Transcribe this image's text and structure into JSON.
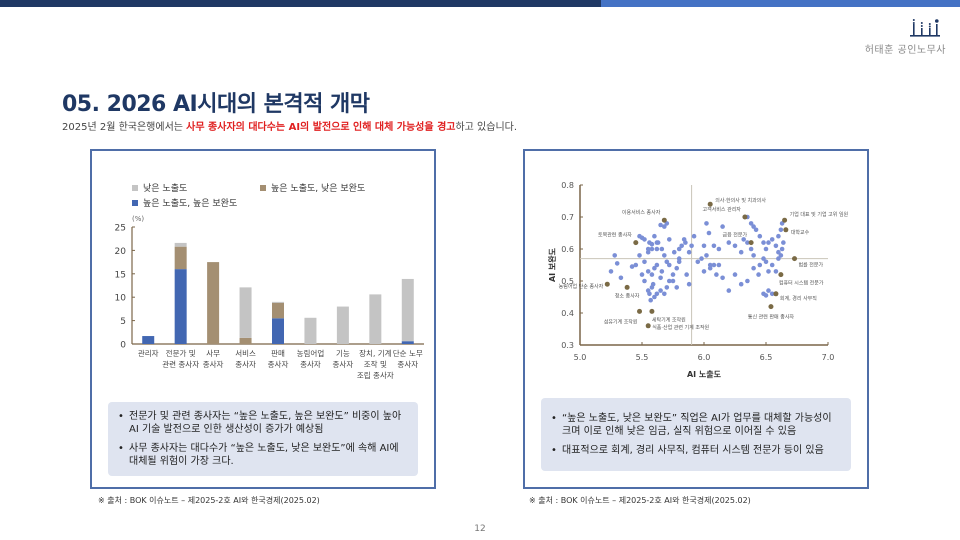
{
  "header": {
    "brand_name": "허태훈 공인노무사",
    "colors": {
      "dark_bar": "#1f3864",
      "light_bar": "#4472c4"
    }
  },
  "title": "05. 2026 AI시대의 본격적 개막",
  "subtitle": {
    "prefix": "2025년 2월 한국은행에서는 ",
    "highlight": "사무 종사자의 대다수는 AI의 발전으로 인해 대체 가능성을 경고",
    "suffix": "하고 있습니다."
  },
  "left_panel": {
    "legend": [
      "낮은 노출도",
      "높은 노출도, 낮은 보완도",
      "높은 노출도, 높은 보완도"
    ],
    "notes": [
      "전문가 및 관련 종사자는 “높은 노출도, 높은 보완도” 비중이 높아 AI 기술 발전으로 인한 생산성이 증가가 예상됨",
      "사무 종사자는 대다수가 “높은 노출도, 낮은 보완도”에 속해 AI에 대체될 위험이 가장 크다."
    ],
    "source": "※ 출처 : BOK 이슈노트 – 제2025-2호 AI와 한국경제(2025.02)"
  },
  "right_panel": {
    "notes": [
      "“높은 노출도, 낮은 보완도” 직업은 AI가 업무를 대체할 가능성이 크며 이로 인해 낮은 임금, 실직 위험으로 이어질 수 있음",
      "대표적으로 회계, 경리 사무직, 컴퓨터 시스템 전문가 등이 있음"
    ],
    "source": "※ 출처 : BOK 이슈노트 – 제2025-2호 AI와 한국경제(2025.02)"
  },
  "page_number": "12",
  "chart_data": [
    {
      "type": "bar",
      "stacked": true,
      "title": "",
      "ylabel": "(%)",
      "xlabel": "",
      "ylim": [
        0,
        25
      ],
      "yticks": [
        0,
        5,
        10,
        15,
        20,
        25
      ],
      "legend_position": "top",
      "categories": [
        "관리자",
        "전문가 및 관련 종사자",
        "사무 종사자",
        "서비스 종사자",
        "판매 종사자",
        "농림어업 종사자",
        "기능 종사자",
        "장치, 기계 조작 및 조립 종사자",
        "단순 노무 종사자"
      ],
      "category_lines": [
        [
          "관리자"
        ],
        [
          "전문가 및",
          "관련 종사자"
        ],
        [
          "사무",
          "종사자"
        ],
        [
          "서비스",
          "종사자"
        ],
        [
          "판매",
          "종사자"
        ],
        [
          "농림어업",
          "종사자"
        ],
        [
          "기능",
          "종사자"
        ],
        [
          "장치, 기계",
          "조작 및",
          "조립 종사자"
        ],
        [
          "단순 노무",
          "종사자"
        ]
      ],
      "series": [
        {
          "name": "높은 노출도, 높은 보완도",
          "color": "#4267b2",
          "values": [
            1.7,
            16.0,
            0,
            0,
            5.5,
            0,
            0,
            0,
            0.6
          ]
        },
        {
          "name": "높은 노출도, 낮은 보완도",
          "color": "#a48f72",
          "values": [
            0,
            4.8,
            17.5,
            1.3,
            3.3,
            0,
            0,
            0,
            0
          ]
        },
        {
          "name": "낮은 노출도",
          "color": "#c4c4c4",
          "values": [
            0,
            0.8,
            0,
            10.8,
            0.2,
            5.6,
            8.0,
            10.6,
            13.3
          ]
        }
      ]
    },
    {
      "type": "scatter",
      "title": "",
      "xlabel": "AI 노출도",
      "ylabel": "AI 보완도",
      "xlim": [
        5.0,
        7.0
      ],
      "ylim": [
        0.3,
        0.8
      ],
      "xticks": [
        "5.0",
        "5.5",
        "6.0",
        "6.5",
        "7.0"
      ],
      "yticks": [
        "0.3",
        "0.4",
        "0.5",
        "0.6",
        "0.7",
        "0.8"
      ],
      "reference_lines": {
        "x": 5.9,
        "y": 0.57
      },
      "colors": {
        "general": "#7b8fd6",
        "highlighted": "#7a6a45"
      },
      "highlighted_points": [
        {
          "label": "의사·한의사 및 치과의사",
          "x": 6.05,
          "y": 0.74
        },
        {
          "label": "이용서비스 종사자",
          "x": 5.68,
          "y": 0.69
        },
        {
          "label": "고객서비스 관리자",
          "x": 6.33,
          "y": 0.7
        },
        {
          "label": "기업 대표 및 기업 고위 임원",
          "x": 6.65,
          "y": 0.69
        },
        {
          "label": "대학교수",
          "x": 6.66,
          "y": 0.66
        },
        {
          "label": "토목관련 종사자",
          "x": 5.45,
          "y": 0.62
        },
        {
          "label": "금융 전문가",
          "x": 6.38,
          "y": 0.62
        },
        {
          "label": "법률 전문가",
          "x": 6.73,
          "y": 0.57
        },
        {
          "label": "컴퓨터 시스템 전문가",
          "x": 6.62,
          "y": 0.52
        },
        {
          "label": "농림어업 단순 종사자",
          "x": 5.22,
          "y": 0.49
        },
        {
          "label": "청소 종사자",
          "x": 5.38,
          "y": 0.48
        },
        {
          "label": "회계, 경리 사무직",
          "x": 6.58,
          "y": 0.46
        },
        {
          "label": "통신 관련 판매 종사자",
          "x": 6.54,
          "y": 0.42
        },
        {
          "label": "섬유기계 조작원",
          "x": 5.48,
          "y": 0.405
        },
        {
          "label": "세탁기계 조작원",
          "x": 5.58,
          "y": 0.405
        },
        {
          "label": "식품·산업 관련 기계 조작원",
          "x": 5.55,
          "y": 0.36
        }
      ],
      "points": [
        [
          5.25,
          0.53
        ],
        [
          5.28,
          0.58
        ],
        [
          5.3,
          0.555
        ],
        [
          5.33,
          0.51
        ],
        [
          5.42,
          0.545
        ],
        [
          5.45,
          0.55
        ],
        [
          5.48,
          0.58
        ],
        [
          5.5,
          0.52
        ],
        [
          5.52,
          0.5
        ],
        [
          5.55,
          0.47
        ],
        [
          5.56,
          0.46
        ],
        [
          5.57,
          0.44
        ],
        [
          5.58,
          0.48
        ],
        [
          5.59,
          0.49
        ],
        [
          5.48,
          0.64
        ],
        [
          5.5,
          0.635
        ],
        [
          5.52,
          0.63
        ],
        [
          5.55,
          0.6
        ],
        [
          5.56,
          0.62
        ],
        [
          5.58,
          0.615
        ],
        [
          5.6,
          0.64
        ],
        [
          5.62,
          0.6
        ],
        [
          5.63,
          0.62
        ],
        [
          5.65,
          0.675
        ],
        [
          5.68,
          0.67
        ],
        [
          5.7,
          0.68
        ],
        [
          5.52,
          0.56
        ],
        [
          5.55,
          0.53
        ],
        [
          5.58,
          0.52
        ],
        [
          5.6,
          0.54
        ],
        [
          5.62,
          0.55
        ],
        [
          5.65,
          0.51
        ],
        [
          5.66,
          0.53
        ],
        [
          5.68,
          0.58
        ],
        [
          5.7,
          0.56
        ],
        [
          5.72,
          0.55
        ],
        [
          5.75,
          0.5
        ],
        [
          5.78,
          0.48
        ],
        [
          5.8,
          0.6
        ],
        [
          5.6,
          0.45
        ],
        [
          5.62,
          0.46
        ],
        [
          5.65,
          0.47
        ],
        [
          5.68,
          0.46
        ],
        [
          5.7,
          0.48
        ],
        [
          5.72,
          0.5
        ],
        [
          5.75,
          0.52
        ],
        [
          5.78,
          0.54
        ],
        [
          5.8,
          0.56
        ],
        [
          5.82,
          0.61
        ],
        [
          5.85,
          0.62
        ],
        [
          5.88,
          0.59
        ],
        [
          5.55,
          0.59
        ],
        [
          5.58,
          0.6
        ],
        [
          5.62,
          0.62
        ],
        [
          5.66,
          0.6
        ],
        [
          5.72,
          0.63
        ],
        [
          5.76,
          0.59
        ],
        [
          5.8,
          0.57
        ],
        [
          5.84,
          0.63
        ],
        [
          5.86,
          0.52
        ],
        [
          5.88,
          0.49
        ],
        [
          5.9,
          0.61
        ],
        [
          5.92,
          0.64
        ],
        [
          5.95,
          0.56
        ],
        [
          5.98,
          0.57
        ],
        [
          6.0,
          0.61
        ],
        [
          6.02,
          0.58
        ],
        [
          6.05,
          0.55
        ],
        [
          6.08,
          0.61
        ],
        [
          6.1,
          0.52
        ],
        [
          6.12,
          0.6
        ],
        [
          6.15,
          0.67
        ],
        [
          6.2,
          0.62
        ],
        [
          6.25,
          0.61
        ],
        [
          6.02,
          0.68
        ],
        [
          6.04,
          0.65
        ],
        [
          6.0,
          0.53
        ],
        [
          6.05,
          0.54
        ],
        [
          6.08,
          0.55
        ],
        [
          6.12,
          0.55
        ],
        [
          6.3,
          0.59
        ],
        [
          6.32,
          0.63
        ],
        [
          6.35,
          0.62
        ],
        [
          6.38,
          0.6
        ],
        [
          6.4,
          0.58
        ],
        [
          6.42,
          0.66
        ],
        [
          6.35,
          0.7
        ],
        [
          6.38,
          0.68
        ],
        [
          6.4,
          0.67
        ],
        [
          6.45,
          0.64
        ],
        [
          6.48,
          0.62
        ],
        [
          6.5,
          0.6
        ],
        [
          6.52,
          0.62
        ],
        [
          6.55,
          0.63
        ],
        [
          6.58,
          0.61
        ],
        [
          6.6,
          0.59
        ],
        [
          6.62,
          0.58
        ],
        [
          6.45,
          0.55
        ],
        [
          6.48,
          0.57
        ],
        [
          6.5,
          0.56
        ],
        [
          6.52,
          0.53
        ],
        [
          6.55,
          0.55
        ],
        [
          6.58,
          0.53
        ],
        [
          6.6,
          0.57
        ],
        [
          6.63,
          0.6
        ],
        [
          6.64,
          0.62
        ],
        [
          6.4,
          0.54
        ],
        [
          6.44,
          0.52
        ],
        [
          6.48,
          0.46
        ],
        [
          6.5,
          0.455
        ],
        [
          6.52,
          0.47
        ],
        [
          6.55,
          0.46
        ],
        [
          6.35,
          0.5
        ],
        [
          6.25,
          0.52
        ],
        [
          6.3,
          0.49
        ],
        [
          6.15,
          0.51
        ],
        [
          6.2,
          0.47
        ],
        [
          6.6,
          0.64
        ],
        [
          6.62,
          0.66
        ],
        [
          6.63,
          0.68
        ]
      ]
    }
  ]
}
